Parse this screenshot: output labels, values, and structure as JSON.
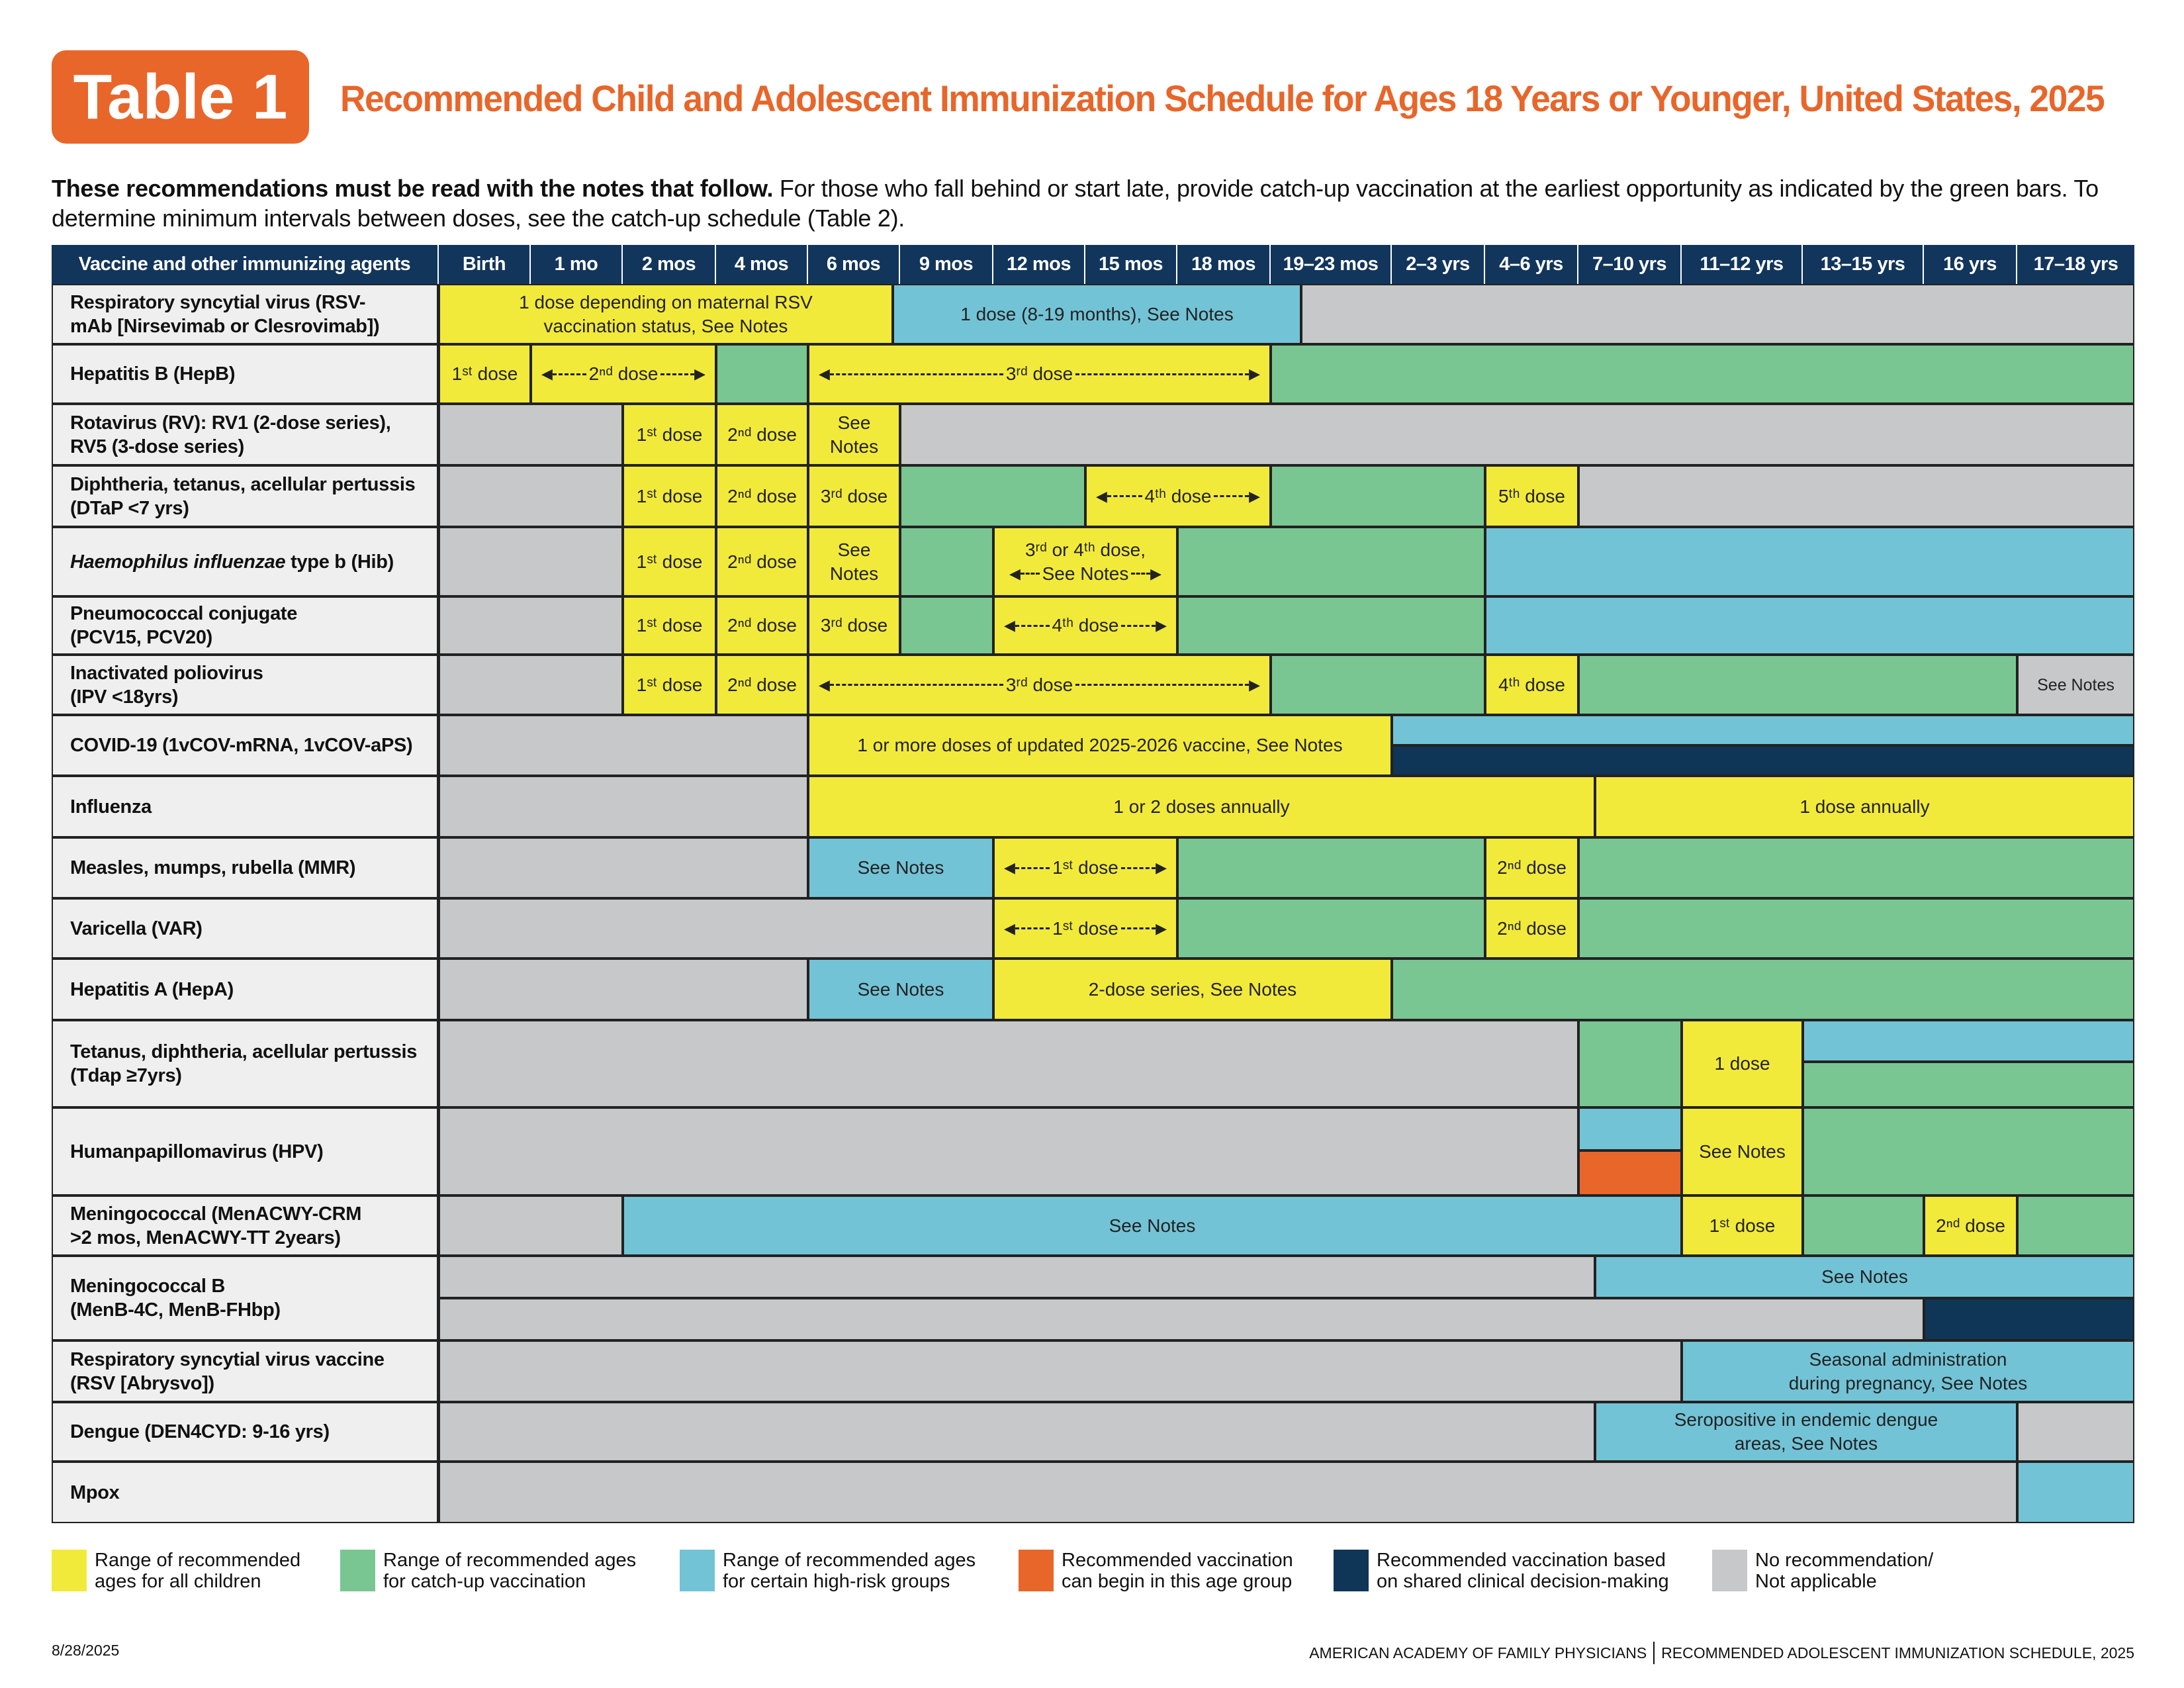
{
  "badge": "Table 1",
  "title": "Recommended Child and Adolescent Immunization Schedule for Ages 18 Years or Younger, United States, 2025",
  "intro": {
    "bold": "These recommendations must be read with the notes that follow.",
    "rest": " For those who fall behind or start late, provide catch-up vaccination at the earliest opportunity as indicated by the green bars. To determine minimum intervals between doses, see the catch-up schedule (Table 2)."
  },
  "colors": {
    "yellow": "#f2ea3a",
    "green": "#79c692",
    "blue": "#73c3d6",
    "orange": "#e8662a",
    "navy": "#0f3557",
    "gray": "#c7c8ca",
    "header": "#12355b"
  },
  "header": {
    "vaccine_col": "Vaccine and other immunizing agents",
    "ages": [
      "Birth",
      "1 mo",
      "2 mos",
      "4 mos",
      "6 mos",
      "9 mos",
      "12 mos",
      "15 mos",
      "18 mos",
      "19–23 mos",
      "2–3 yrs",
      "4–6 yrs",
      "7–10 yrs",
      "11–12 yrs",
      "13–15 yrs",
      "16 yrs",
      "17–18 yrs"
    ]
  },
  "rows": [
    {
      "label": "Respiratory syncytial virus (RSV-\nmAb [Nirsevimab or Clesrovimab])",
      "segments": [
        {
          "kind": "yellow",
          "text": "1 dose depending on maternal RSV\nvaccination status, See Notes"
        },
        {
          "kind": "blue",
          "text": "1 dose (8-19 months), See Notes"
        },
        {
          "kind": "gray",
          "text": ""
        }
      ]
    },
    {
      "label": "Hepatitis B (HepB)",
      "segments": [
        {
          "kind": "yellow",
          "text": "1ˢᵗ dose"
        },
        {
          "kind": "yellow",
          "text": "2ⁿᵈ dose",
          "arrow": true
        },
        {
          "kind": "green",
          "text": ""
        },
        {
          "kind": "yellow",
          "text": "3ʳᵈ dose",
          "arrow": true
        },
        {
          "kind": "green",
          "text": ""
        }
      ]
    },
    {
      "label": "Rotavirus (RV): RV1 (2-dose series),\nRV5 (3-dose series)",
      "segments": [
        {
          "kind": "gray",
          "text": ""
        },
        {
          "kind": "yellow",
          "text": "1ˢᵗ dose"
        },
        {
          "kind": "yellow",
          "text": "2ⁿᵈ dose"
        },
        {
          "kind": "yellow",
          "text": "See\nNotes"
        },
        {
          "kind": "gray",
          "text": ""
        }
      ]
    },
    {
      "label": "Diphtheria, tetanus, acellular pertussis\n(DTaP <7 yrs)",
      "segments": [
        {
          "kind": "gray",
          "text": ""
        },
        {
          "kind": "yellow",
          "text": "1ˢᵗ dose"
        },
        {
          "kind": "yellow",
          "text": "2ⁿᵈ dose"
        },
        {
          "kind": "yellow",
          "text": "3ʳᵈ dose"
        },
        {
          "kind": "green",
          "text": ""
        },
        {
          "kind": "yellow",
          "text": "4ᵗʰ dose",
          "arrow": true
        },
        {
          "kind": "green",
          "text": ""
        },
        {
          "kind": "yellow",
          "text": "5ᵗʰ dose"
        },
        {
          "kind": "gray",
          "text": ""
        }
      ]
    },
    {
      "label_italic": "Haemophilus influenzae",
      "label": " type b (Hib)",
      "segments": [
        {
          "kind": "gray",
          "text": ""
        },
        {
          "kind": "yellow",
          "text": "1ˢᵗ dose"
        },
        {
          "kind": "yellow",
          "text": "2ⁿᵈ dose"
        },
        {
          "kind": "yellow",
          "text": "See\nNotes"
        },
        {
          "kind": "green",
          "text": ""
        },
        {
          "kind": "yellow",
          "text": "3ʳᵈ or 4ᵗʰ dose,",
          "arrow_line2": "See Notes"
        },
        {
          "kind": "green",
          "text": ""
        },
        {
          "kind": "blue",
          "text": ""
        }
      ]
    },
    {
      "label": "Pneumococcal conjugate\n(PCV15, PCV20)",
      "segments": [
        {
          "kind": "gray",
          "text": ""
        },
        {
          "kind": "yellow",
          "text": "1ˢᵗ dose"
        },
        {
          "kind": "yellow",
          "text": "2ⁿᵈ dose"
        },
        {
          "kind": "yellow",
          "text": "3ʳᵈ dose"
        },
        {
          "kind": "green",
          "text": ""
        },
        {
          "kind": "yellow",
          "text": "4ᵗʰ dose",
          "arrow": true
        },
        {
          "kind": "green",
          "text": ""
        },
        {
          "kind": "blue",
          "text": ""
        }
      ]
    },
    {
      "label": "Inactivated poliovirus\n(IPV <18yrs)",
      "segments": [
        {
          "kind": "gray",
          "text": ""
        },
        {
          "kind": "yellow",
          "text": "1ˢᵗ dose"
        },
        {
          "kind": "yellow",
          "text": "2ⁿᵈ dose"
        },
        {
          "kind": "yellow",
          "text": "3ʳᵈ dose",
          "arrow": true
        },
        {
          "kind": "green",
          "text": ""
        },
        {
          "kind": "yellow",
          "text": "4ᵗʰ dose"
        },
        {
          "kind": "green",
          "text": ""
        },
        {
          "kind": "gray",
          "text": "See Notes"
        }
      ]
    },
    {
      "label": "COVID-19 (1vCOV-mRNA, 1vCOV-aPS)",
      "segments": [
        {
          "kind": "gray",
          "text": ""
        },
        {
          "kind": "yellow",
          "text": "1 or more doses of updated 2025-2026 vaccine, See Notes"
        },
        {
          "kind": "blue",
          "text": ""
        },
        {
          "kind": "navy",
          "text": ""
        }
      ]
    },
    {
      "label": "Influenza",
      "segments": [
        {
          "kind": "gray",
          "text": ""
        },
        {
          "kind": "yellow",
          "text": "1 or 2 doses annually"
        },
        {
          "kind": "yellow",
          "text": "1 dose annually"
        }
      ]
    },
    {
      "label": "Measles, mumps, rubella (MMR)",
      "segments": [
        {
          "kind": "gray",
          "text": ""
        },
        {
          "kind": "blue",
          "text": "See Notes"
        },
        {
          "kind": "yellow",
          "text": "1ˢᵗ dose",
          "arrow": true
        },
        {
          "kind": "green",
          "text": ""
        },
        {
          "kind": "yellow",
          "text": "2ⁿᵈ dose"
        },
        {
          "kind": "green",
          "text": ""
        }
      ]
    },
    {
      "label": "Varicella (VAR)",
      "segments": [
        {
          "kind": "gray",
          "text": ""
        },
        {
          "kind": "yellow",
          "text": "1ˢᵗ dose",
          "arrow": true
        },
        {
          "kind": "green",
          "text": ""
        },
        {
          "kind": "yellow",
          "text": "2ⁿᵈ dose"
        },
        {
          "kind": "green",
          "text": ""
        }
      ]
    },
    {
      "label": "Hepatitis A (HepA)",
      "segments": [
        {
          "kind": "gray",
          "text": ""
        },
        {
          "kind": "blue",
          "text": "See Notes"
        },
        {
          "kind": "yellow",
          "text": "2-dose series, See Notes"
        },
        {
          "kind": "green",
          "text": ""
        }
      ]
    },
    {
      "label": "Tetanus, diphtheria, acellular pertussis\n(Tdap ≥7yrs)",
      "segments": [
        {
          "kind": "gray",
          "text": ""
        },
        {
          "kind": "green",
          "text": ""
        },
        {
          "kind": "yellow",
          "text": "1 dose"
        },
        {
          "kind": "blue",
          "text": ""
        },
        {
          "kind": "green",
          "text": ""
        }
      ]
    },
    {
      "label": "Humanpapillomavirus (HPV)",
      "segments": [
        {
          "kind": "gray",
          "text": ""
        },
        {
          "kind": "blue",
          "text": ""
        },
        {
          "kind": "orange",
          "text": ""
        },
        {
          "kind": "yellow",
          "text": "See Notes"
        },
        {
          "kind": "green",
          "text": ""
        }
      ]
    },
    {
      "label": "Meningococcal (MenACWY-CRM\n>2 mos, MenACWY-TT 2years)",
      "segments": [
        {
          "kind": "gray",
          "text": ""
        },
        {
          "kind": "blue",
          "text": "See Notes"
        },
        {
          "kind": "yellow",
          "text": "1ˢᵗ dose"
        },
        {
          "kind": "green",
          "text": ""
        },
        {
          "kind": "yellow",
          "text": "2ⁿᵈ dose"
        },
        {
          "kind": "green",
          "text": ""
        }
      ]
    },
    {
      "label": "Meningococcal B\n(MenB-4C, MenB-FHbp)",
      "segments": [
        {
          "kind": "gray",
          "text": ""
        },
        {
          "kind": "blue",
          "text": "See Notes"
        },
        {
          "kind": "gray",
          "text": ""
        },
        {
          "kind": "navy",
          "text": ""
        }
      ]
    },
    {
      "label": "Respiratory syncytial virus vaccine\n(RSV [Abrysvo])",
      "segments": [
        {
          "kind": "gray",
          "text": ""
        },
        {
          "kind": "blue",
          "text": "Seasonal administration\nduring pregnancy, See Notes"
        }
      ]
    },
    {
      "label": "Dengue (DEN4CYD: 9-16 yrs)",
      "segments": [
        {
          "kind": "gray",
          "text": ""
        },
        {
          "kind": "blue",
          "text": "Seropositive in endemic dengue\nareas, See Notes"
        },
        {
          "kind": "gray",
          "text": ""
        }
      ]
    },
    {
      "label": "Mpox",
      "segments": [
        {
          "kind": "gray",
          "text": ""
        },
        {
          "kind": "blue",
          "text": ""
        }
      ]
    }
  ],
  "legend": [
    {
      "kind": "yellow",
      "text": "Range of recommended\nages for all children"
    },
    {
      "kind": "green",
      "text": "Range of recommended ages\nfor catch-up vaccination"
    },
    {
      "kind": "blue",
      "text": "Range of recommended ages\nfor certain high-risk groups"
    },
    {
      "kind": "orange",
      "text": "Recommended vaccination\ncan begin in this age group"
    },
    {
      "kind": "navy",
      "text": "Recommended vaccination based\non shared clinical decision-making"
    },
    {
      "kind": "gray",
      "text": "No recommendation/\nNot applicable"
    }
  ],
  "footer": {
    "date": "8/28/2025",
    "org": "AMERICAN ACADEMY OF FAMILY PHYSICIANS",
    "doc": "RECOMMENDED ADOLESCENT IMMUNIZATION SCHEDULE, 2025"
  }
}
